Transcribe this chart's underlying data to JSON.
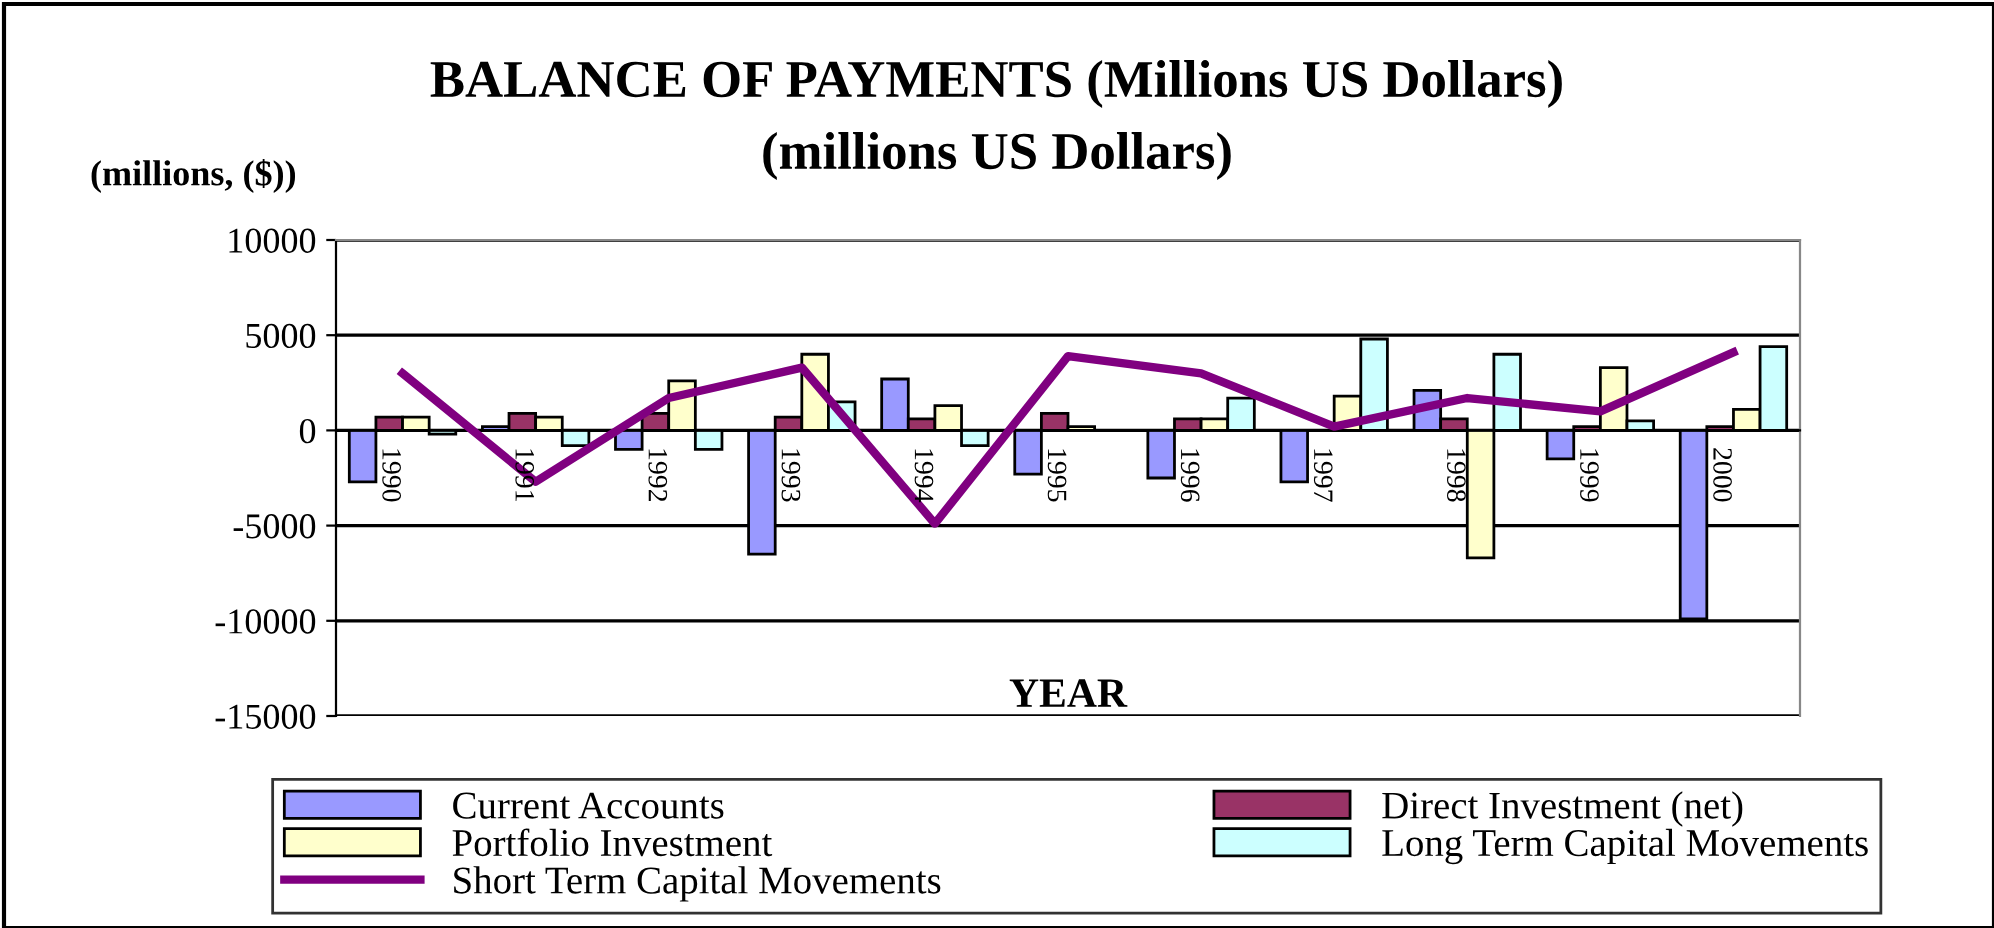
{
  "chart_data": {
    "type": "bar",
    "title": "BALANCE OF PAYMENTS (Millions US Dollars)",
    "subtitle": "(millions US Dollars)",
    "ylabel": "(millions, ($))",
    "xlabel": "YEAR",
    "categories": [
      "1990",
      "1991",
      "1992",
      "1993",
      "1994",
      "1995",
      "1996",
      "1997",
      "1998",
      "1999",
      "2000"
    ],
    "series": [
      {
        "name": "Current Accounts",
        "color": "#9999ff",
        "values": [
          -2700,
          200,
          -1000,
          -6500,
          2700,
          -2300,
          -2500,
          -2700,
          2100,
          -1500,
          -9900
        ]
      },
      {
        "name": "Direct Investment (net)",
        "color": "#993366",
        "values": [
          700,
          900,
          900,
          700,
          600,
          900,
          600,
          null,
          600,
          200,
          200
        ]
      },
      {
        "name": "Portfolio Investment",
        "color": "#ffffcc",
        "values": [
          700,
          700,
          2600,
          4000,
          1300,
          200,
          600,
          1800,
          -6700,
          3300,
          1100
        ]
      },
      {
        "name": "Long Term Capital Movements",
        "color": "#ccffff",
        "values": [
          -200,
          -800,
          -1000,
          1500,
          -800,
          null,
          1700,
          4800,
          4000,
          500,
          4400
        ]
      },
      {
        "name": "Short Term Capital Movements",
        "color": "#800080",
        "type": "line",
        "values": [
          3000,
          -2700,
          1700,
          3300,
          -4900,
          3900,
          3000,
          200,
          1700,
          1000,
          4100
        ]
      }
    ],
    "ylim": [
      -15000,
      10000
    ],
    "yticks": [
      -15000,
      -10000,
      -5000,
      0,
      5000,
      10000
    ],
    "grid": "y",
    "legend": "bottom"
  }
}
